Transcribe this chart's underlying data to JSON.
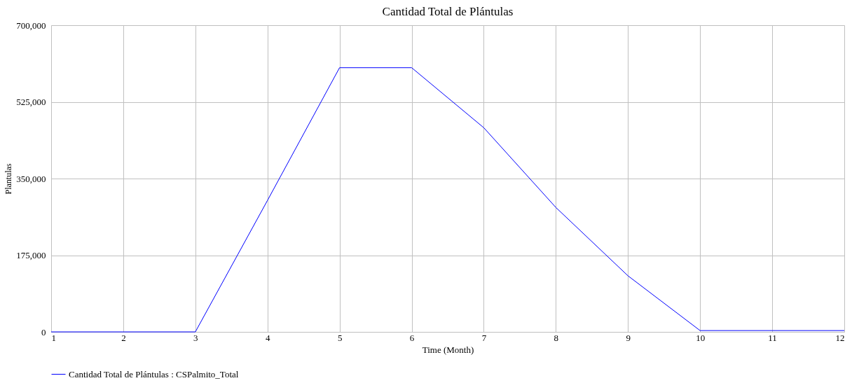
{
  "chart_data": {
    "type": "line",
    "title": "Cantidad Total de Plántulas",
    "xlabel": "Time (Month)",
    "ylabel": "Plantulas",
    "x": [
      1,
      2,
      3,
      4,
      5,
      6,
      7,
      8,
      9,
      10,
      11,
      12
    ],
    "series": [
      {
        "name": "Cantidad Total de Plántulas : CSPalmito_Total",
        "color": "#0000ff",
        "values": [
          0,
          0,
          0,
          300000,
          603000,
          603000,
          466000,
          284000,
          128000,
          3000,
          3000,
          3000
        ]
      }
    ],
    "xlim": [
      1,
      12
    ],
    "xticks": [
      1,
      2,
      3,
      4,
      5,
      6,
      7,
      8,
      9,
      10,
      11,
      12
    ],
    "ylim": [
      0,
      700000
    ],
    "yticks": [
      0,
      {
        "value": 175000,
        "label": "175,000"
      },
      {
        "value": 350000,
        "label": "350,000"
      },
      {
        "value": 525000,
        "label": "525,000"
      },
      {
        "value": 700000,
        "label": "700,000"
      }
    ],
    "grid": true,
    "legend": "bottom",
    "marker": "none",
    "line_style": "solid"
  }
}
